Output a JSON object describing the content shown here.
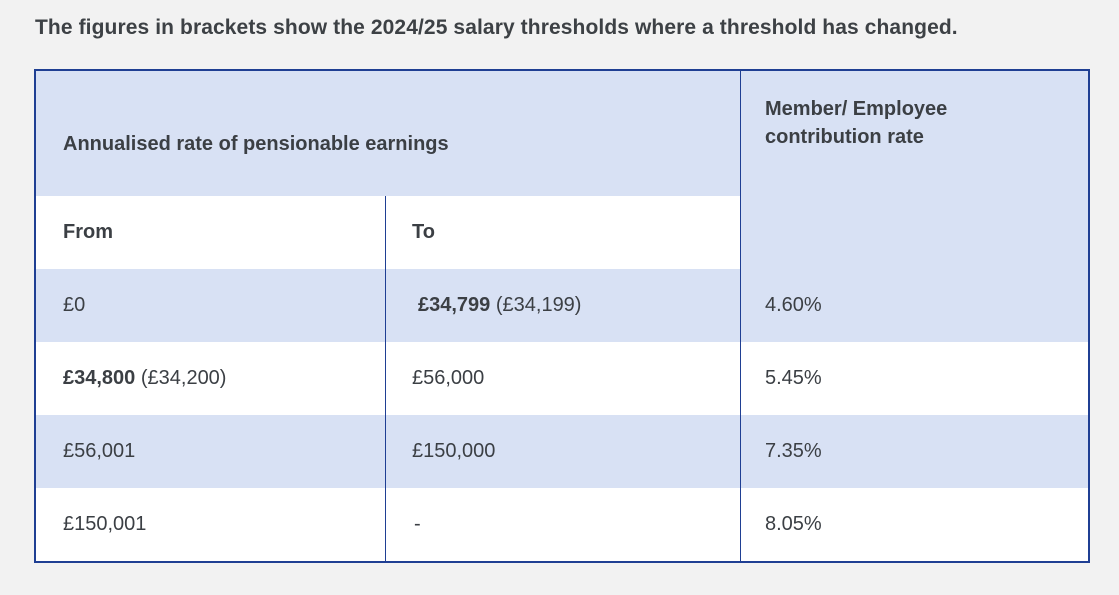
{
  "intro": "The figures in brackets show the 2024/25 salary thresholds where a threshold has changed.",
  "header": {
    "earnings": "Annualised rate of pensionable earnings",
    "rate_line1": "Member/ Employee",
    "rate_line2": "contribution rate",
    "from": "From",
    "to": "To"
  },
  "rows": [
    {
      "from_bold": "",
      "from_plain": "£0",
      "to_bold": "£34,799",
      "to_plain": " (£34,199)",
      "rate": "4.60%"
    },
    {
      "from_bold": "£34,800",
      "from_plain": " (£34,200)",
      "to_bold": "",
      "to_plain": "£56,000",
      "rate": "5.45%"
    },
    {
      "from_bold": "",
      "from_plain": "£56,001",
      "to_bold": "",
      "to_plain": "£150,000",
      "rate": "7.35%"
    },
    {
      "from_bold": "",
      "from_plain": "£150,001",
      "to_bold": "",
      "to_plain": "-",
      "rate": "8.05%"
    }
  ],
  "colors": {
    "border": "#1f3f93",
    "band": "#d8e1f4",
    "text": "#3b3f44"
  }
}
